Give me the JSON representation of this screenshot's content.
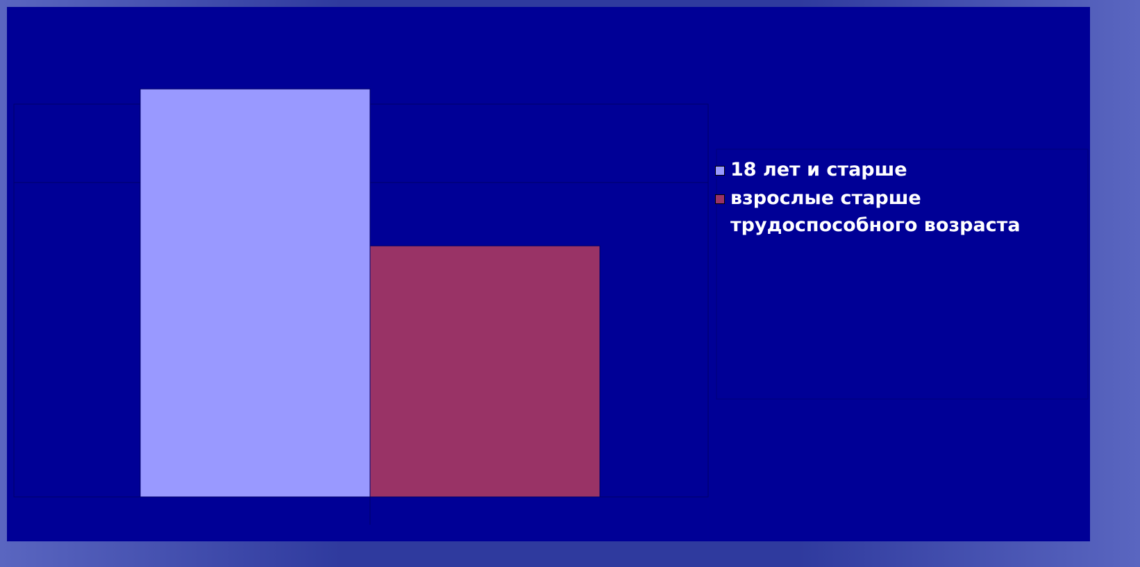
{
  "chart_data": {
    "type": "bar",
    "categories": [
      null
    ],
    "series": [
      {
        "name": "18 лет и старше",
        "color": "#9999ff",
        "values": [
          65
        ]
      },
      {
        "name": "взрослые старше трудоспособного возраста",
        "color": "#993366",
        "values": [
          40
        ]
      }
    ],
    "ylim": [
      0,
      70
    ],
    "legend": "right"
  }
}
